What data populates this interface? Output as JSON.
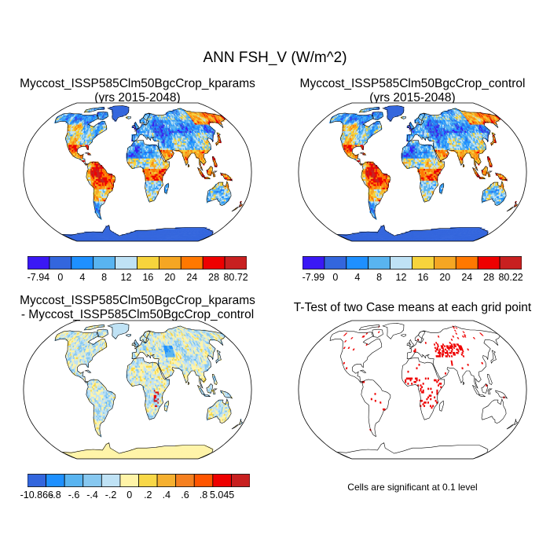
{
  "figure": {
    "title": "ANN FSH_V (W/m^2)"
  },
  "panels": [
    {
      "title_line1": "Myccost_ISSP585Clm50BgcCrop_kparams",
      "title_line2": "(yrs 2015-2048)",
      "style": "absolute"
    },
    {
      "title_line1": "Myccost_ISSP585Clm50BgcCrop_control",
      "title_line2": "(yrs 2015-2048)",
      "style": "absolute"
    },
    {
      "title_line1": "Myccost_ISSP585Clm50BgcCrop_kparams",
      "title_line2": "- Myccost_ISSP585Clm50BgcCrop_control",
      "style": "difference"
    },
    {
      "title_line1": "T-Test of two Case means at each grid point",
      "title_line2": "",
      "style": "ttest"
    }
  ],
  "colorbars": {
    "cb1": {
      "labels": [
        "-7.94",
        "0",
        "4",
        "8",
        "12",
        "16",
        "20",
        "24",
        "28",
        "80.72"
      ]
    },
    "cb2": {
      "labels": [
        "-7.99",
        "0",
        "4",
        "8",
        "12",
        "16",
        "20",
        "24",
        "28",
        "80.22"
      ]
    },
    "cb3": {
      "labels": [
        "-10.866",
        "-.8",
        "-.6",
        "-.4",
        "-.2",
        "0",
        ".2",
        ".4",
        ".6",
        ".8",
        "5.045"
      ]
    }
  },
  "colors": {
    "abs_palette": [
      "#3a18f5",
      "#3366dd",
      "#1e90ff",
      "#59b4f0",
      "#bfe2f5",
      "#f7d43c",
      "#f5a623",
      "#ff7800",
      "#ee0000",
      "#c82020"
    ],
    "diff_palette": [
      "#3a18f5",
      "#3366dd",
      "#1e90ff",
      "#59b4f0",
      "#87c8f0",
      "#bfe2f5",
      "#fff4a8",
      "#f8d848",
      "#f5b030",
      "#f58020",
      "#ff5500",
      "#ee0000",
      "#c82020"
    ],
    "ocean": "#ffffff",
    "ttest_mark": "#ee0000"
  },
  "footnote": "Cells are significant at 0.1 level",
  "chart_data": [
    {
      "type": "map",
      "title": "Myccost_ISSP585Clm50BgcCrop_kparams (yrs 2015-2048)",
      "variable": "ANN FSH_V (W/m^2)",
      "range": [
        -7.94,
        80.72
      ],
      "levels": [
        0,
        4,
        8,
        12,
        16,
        20,
        24,
        28
      ]
    },
    {
      "type": "map",
      "title": "Myccost_ISSP585Clm50BgcCrop_control (yrs 2015-2048)",
      "variable": "ANN FSH_V (W/m^2)",
      "range": [
        -7.99,
        80.22
      ],
      "levels": [
        0,
        4,
        8,
        12,
        16,
        20,
        24,
        28
      ]
    },
    {
      "type": "map",
      "title": "Myccost_ISSP585Clm50BgcCrop_kparams - Myccost_ISSP585Clm50BgcCrop_control",
      "variable": "ANN FSH_V (W/m^2)",
      "range": [
        -10.866,
        5.045
      ],
      "levels": [
        -0.8,
        -0.6,
        -0.4,
        -0.2,
        0,
        0.2,
        0.4,
        0.6,
        0.8
      ]
    },
    {
      "type": "map",
      "title": "T-Test of two Case means at each grid point",
      "significance_level": 0.1
    }
  ]
}
